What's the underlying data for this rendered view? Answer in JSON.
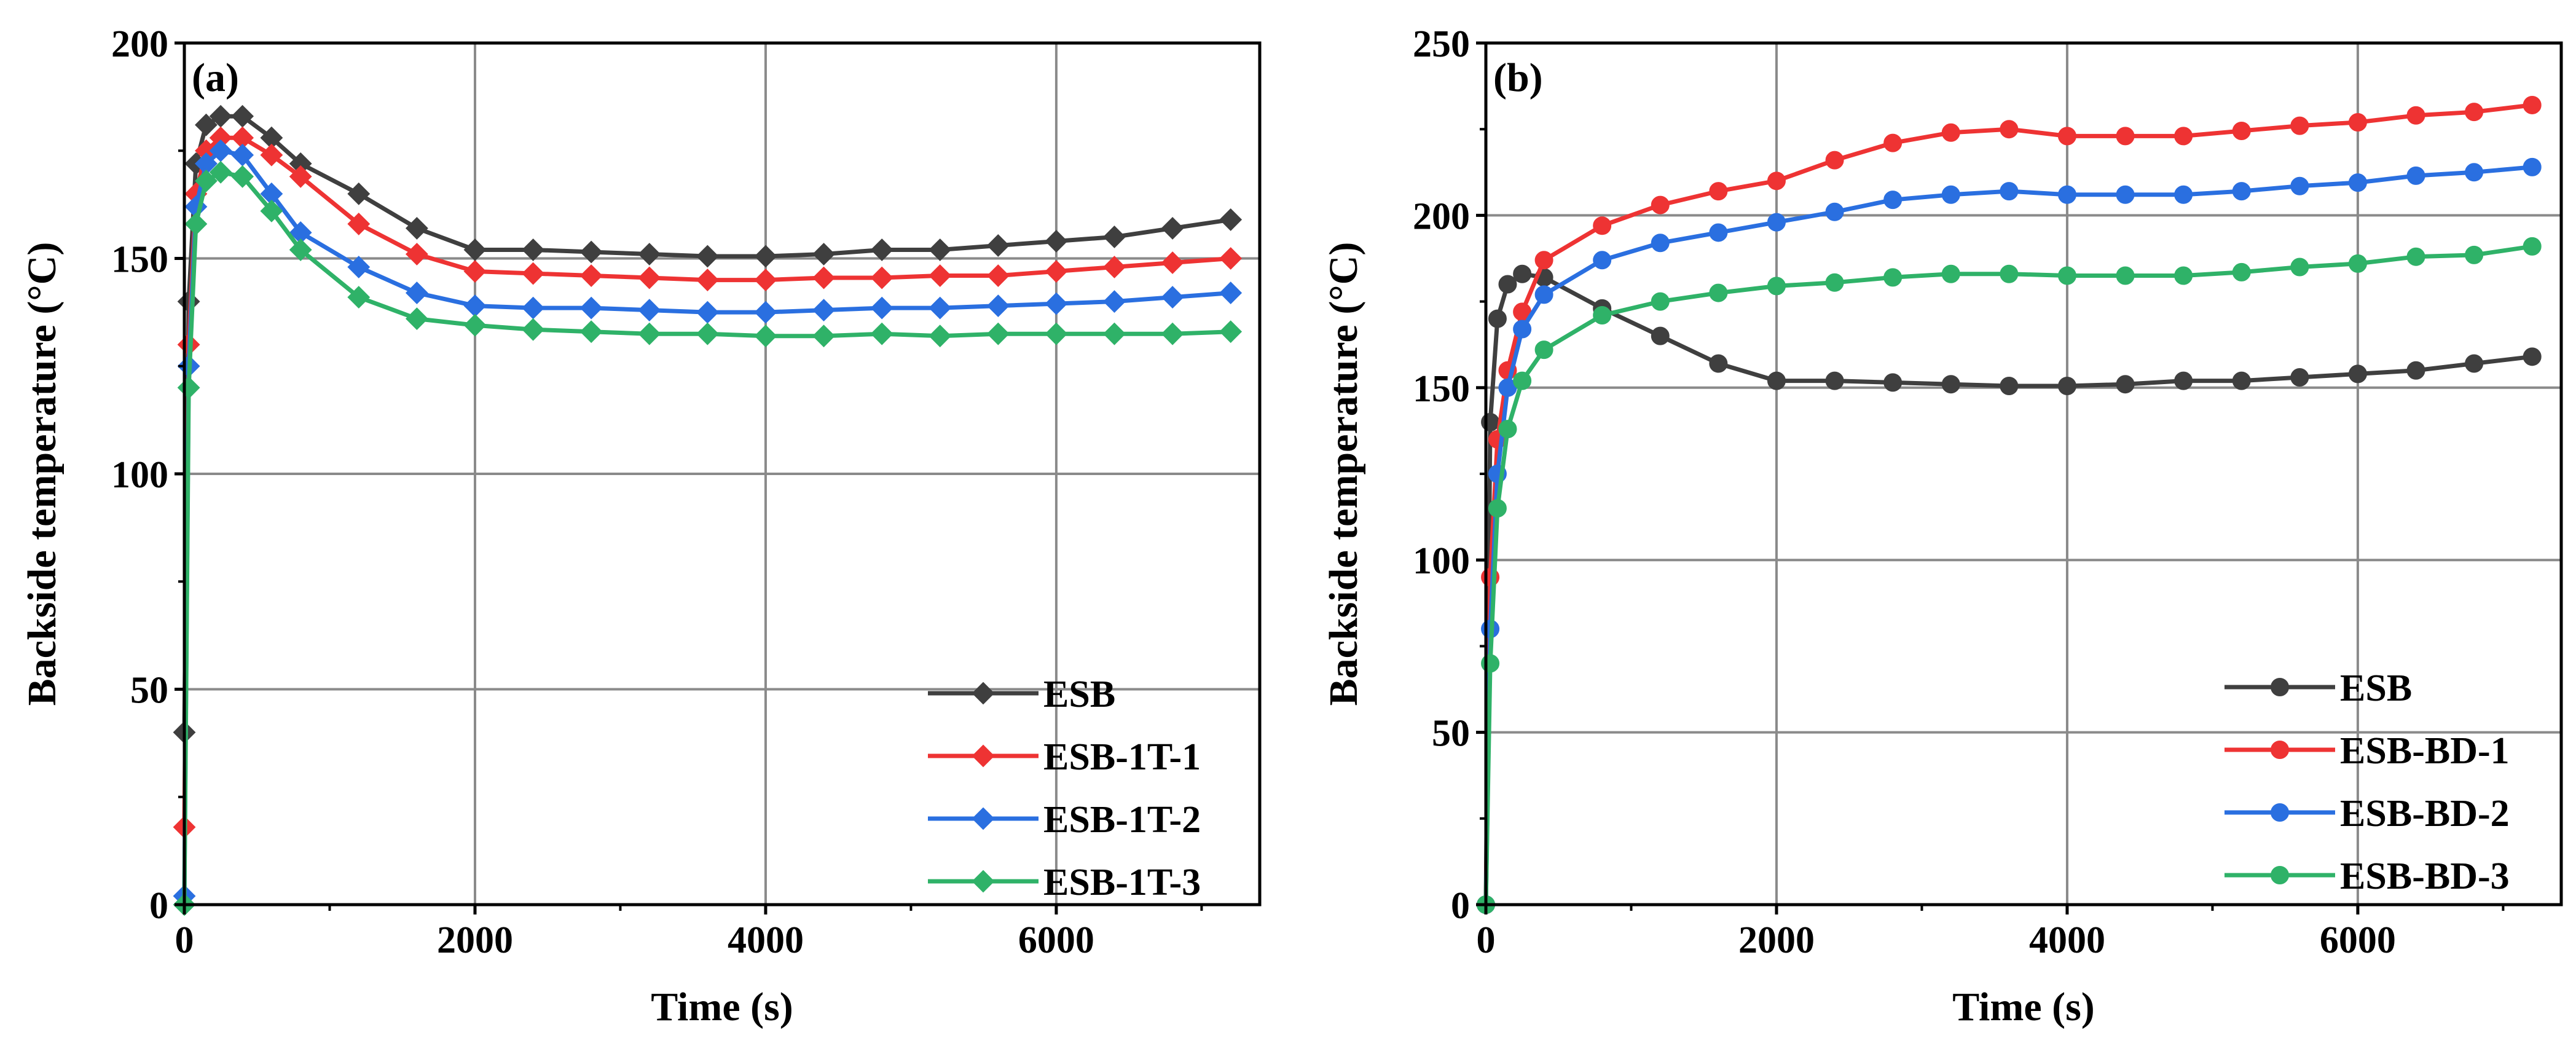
{
  "colors": {
    "ESB": "#3f3f3f",
    "series1": "#ee3333",
    "series2": "#2a6fe0",
    "series3": "#2fb268",
    "grid": "#8a8a8a"
  },
  "chart_data": [
    {
      "type": "line",
      "panel_label": "(a)",
      "xlabel": "Time (s)",
      "ylabel": "Backside temperature (°C)",
      "xlim": [
        0,
        7400
      ],
      "ylim": [
        0,
        200
      ],
      "xticks": [
        0,
        2000,
        4000,
        6000
      ],
      "yticks": [
        0,
        50,
        100,
        150,
        200
      ],
      "grid": true,
      "marker": "diamond",
      "legend_position": "bottom-right",
      "series": [
        {
          "name": "ESB",
          "color": "#3f3f3f",
          "x": [
            0,
            30,
            80,
            150,
            250,
            400,
            600,
            800,
            1200,
            1600,
            2000,
            2400,
            2800,
            3200,
            3600,
            4000,
            4400,
            4800,
            5200,
            5600,
            6000,
            6400,
            6800,
            7200
          ],
          "y": [
            40,
            140,
            172,
            181,
            183,
            183,
            178,
            172,
            165,
            157,
            152,
            152,
            151.5,
            151,
            150.5,
            150.5,
            151,
            152,
            152,
            153,
            154,
            155,
            157,
            159
          ]
        },
        {
          "name": "ESB-1T-1",
          "color": "#ee3333",
          "x": [
            0,
            30,
            80,
            150,
            250,
            400,
            600,
            800,
            1200,
            1600,
            2000,
            2400,
            2800,
            3200,
            3600,
            4000,
            4400,
            4800,
            5200,
            5600,
            6000,
            6400,
            6800,
            7200
          ],
          "y": [
            18,
            130,
            165,
            175,
            178,
            178,
            174,
            169,
            158,
            151,
            147,
            146.5,
            146,
            145.5,
            145,
            145,
            145.5,
            145.5,
            146,
            146,
            147,
            148,
            149,
            150
          ]
        },
        {
          "name": "ESB-1T-2",
          "color": "#2a6fe0",
          "x": [
            0,
            30,
            80,
            150,
            250,
            400,
            600,
            800,
            1200,
            1600,
            2000,
            2400,
            2800,
            3200,
            3600,
            4000,
            4400,
            4800,
            5200,
            5600,
            6000,
            6400,
            6800,
            7200
          ],
          "y": [
            2,
            125,
            162,
            172,
            175,
            174,
            165,
            156,
            148,
            142,
            139,
            138.5,
            138.5,
            138,
            137.5,
            137.5,
            138,
            138.5,
            138.5,
            139,
            139.5,
            140,
            141,
            142
          ]
        },
        {
          "name": "ESB-1T-3",
          "color": "#2fb268",
          "x": [
            0,
            30,
            80,
            150,
            250,
            400,
            600,
            800,
            1200,
            1600,
            2000,
            2400,
            2800,
            3200,
            3600,
            4000,
            4400,
            4800,
            5200,
            5600,
            6000,
            6400,
            6800,
            7200
          ],
          "y": [
            0,
            120,
            158,
            168,
            170,
            169,
            161,
            152,
            141,
            136,
            134.5,
            133.5,
            133,
            132.5,
            132.5,
            132,
            132,
            132.5,
            132,
            132.5,
            132.5,
            132.5,
            132.5,
            133
          ]
        }
      ]
    },
    {
      "type": "line",
      "panel_label": "(b)",
      "xlabel": "Time (s)",
      "ylabel": "Backside temperature (°C)",
      "xlim": [
        0,
        7400
      ],
      "ylim": [
        0,
        250
      ],
      "xticks": [
        0,
        2000,
        4000,
        6000
      ],
      "yticks": [
        0,
        50,
        100,
        150,
        200,
        250
      ],
      "grid": true,
      "marker": "circle",
      "legend_position": "bottom-right",
      "series": [
        {
          "name": " ESB",
          "color": "#3f3f3f",
          "x": [
            0,
            30,
            80,
            150,
            250,
            400,
            800,
            1200,
            1600,
            2000,
            2400,
            2800,
            3200,
            3600,
            4000,
            4400,
            4800,
            5200,
            5600,
            6000,
            6400,
            6800,
            7200
          ],
          "y": [
            0,
            140,
            170,
            180,
            183,
            182,
            173,
            165,
            157,
            152,
            152,
            151.5,
            151,
            150.5,
            150.5,
            151,
            152,
            152,
            153,
            154,
            155,
            157,
            159
          ]
        },
        {
          "name": "ESB-BD-1",
          "color": "#ee3333",
          "x": [
            0,
            30,
            80,
            150,
            250,
            400,
            800,
            1200,
            1600,
            2000,
            2400,
            2800,
            3200,
            3600,
            4000,
            4400,
            4800,
            5200,
            5600,
            6000,
            6400,
            6800,
            7200
          ],
          "y": [
            0,
            95,
            135,
            155,
            172,
            187,
            197,
            203,
            207,
            210,
            216,
            221,
            224,
            225,
            223,
            223,
            223,
            224.5,
            226,
            227,
            229,
            230,
            232
          ]
        },
        {
          "name": "ESB-BD-2",
          "color": "#2a6fe0",
          "x": [
            0,
            30,
            80,
            150,
            250,
            400,
            800,
            1200,
            1600,
            2000,
            2400,
            2800,
            3200,
            3600,
            4000,
            4400,
            4800,
            5200,
            5600,
            6000,
            6400,
            6800,
            7200
          ],
          "y": [
            0,
            80,
            125,
            150,
            167,
            177,
            187,
            192,
            195,
            198,
            201,
            204.5,
            206,
            207,
            206,
            206,
            206,
            207,
            208.5,
            209.5,
            211.5,
            212.5,
            214
          ]
        },
        {
          "name": "ESB-BD-3",
          "color": "#2fb268",
          "x": [
            0,
            30,
            80,
            150,
            250,
            400,
            800,
            1200,
            1600,
            2000,
            2400,
            2800,
            3200,
            3600,
            4000,
            4400,
            4800,
            5200,
            5600,
            6000,
            6400,
            6800,
            7200
          ],
          "y": [
            0,
            70,
            115,
            138,
            152,
            161,
            171,
            175,
            177.5,
            179.5,
            180.5,
            182,
            183,
            183,
            182.5,
            182.5,
            182.5,
            183.5,
            185,
            186,
            188,
            188.5,
            191
          ]
        }
      ]
    }
  ]
}
